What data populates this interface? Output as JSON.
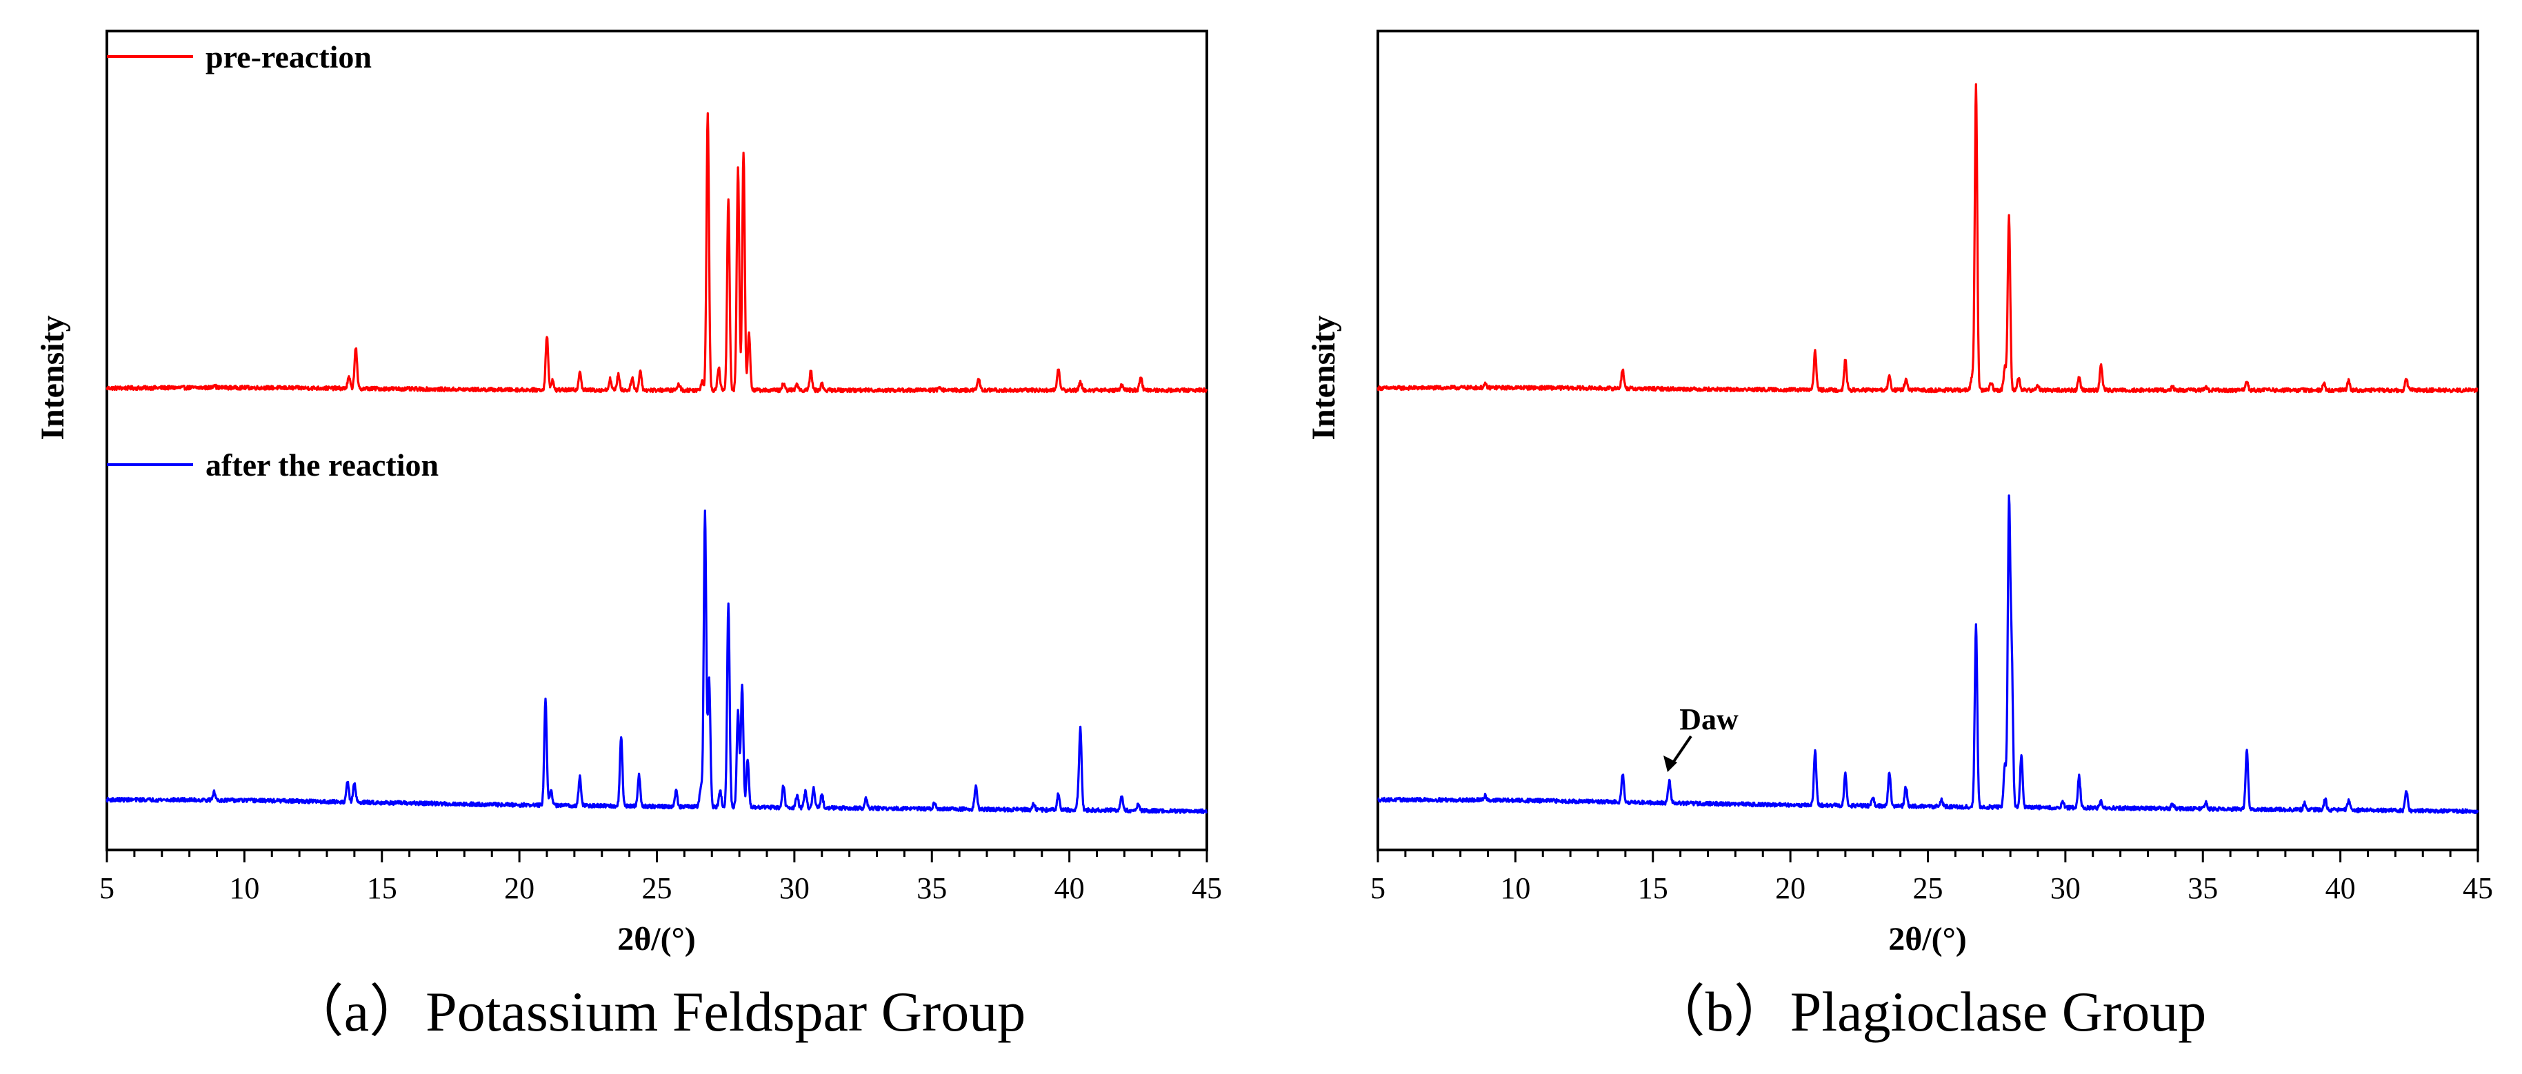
{
  "chart_data": [
    {
      "type": "line",
      "caption": "（a）Potassium Feldspar Group",
      "xlabel": "2θ/(°)",
      "ylabel": "Intensity",
      "xlim": [
        5,
        45
      ],
      "xticks": [
        5,
        10,
        15,
        20,
        25,
        30,
        35,
        40,
        45
      ],
      "yticks_shown": false,
      "legend_placement": "top-left",
      "series": [
        {
          "name": "pre-reaction",
          "color": "#ff0000",
          "baseline": 0.0,
          "peaks": [
            [
              8.9,
              0.01
            ],
            [
              13.8,
              0.035
            ],
            [
              14.05,
              0.13
            ],
            [
              21.0,
              0.17
            ],
            [
              21.2,
              0.03
            ],
            [
              22.2,
              0.06
            ],
            [
              23.3,
              0.035
            ],
            [
              23.6,
              0.05
            ],
            [
              24.1,
              0.04
            ],
            [
              24.4,
              0.06
            ],
            [
              25.8,
              0.02
            ],
            [
              26.65,
              0.03
            ],
            [
              26.85,
              0.87
            ],
            [
              27.25,
              0.07
            ],
            [
              27.6,
              0.6
            ],
            [
              27.95,
              0.7
            ],
            [
              28.15,
              0.75
            ],
            [
              28.35,
              0.18
            ],
            [
              29.6,
              0.02
            ],
            [
              30.1,
              0.02
            ],
            [
              30.6,
              0.06
            ],
            [
              31.0,
              0.02
            ],
            [
              35.3,
              0.01
            ],
            [
              36.7,
              0.035
            ],
            [
              39.6,
              0.07
            ],
            [
              40.4,
              0.025
            ],
            [
              41.9,
              0.015
            ],
            [
              42.6,
              0.045
            ]
          ]
        },
        {
          "name": "after the reaction",
          "color": "#0000ff",
          "baseline": -0.03,
          "peaks": [
            [
              8.9,
              0.025
            ],
            [
              13.75,
              0.065
            ],
            [
              14.0,
              0.06
            ],
            [
              20.95,
              0.33
            ],
            [
              21.15,
              0.05
            ],
            [
              22.2,
              0.09
            ],
            [
              23.7,
              0.22
            ],
            [
              24.35,
              0.1
            ],
            [
              25.7,
              0.05
            ],
            [
              26.6,
              0.06
            ],
            [
              26.75,
              0.93
            ],
            [
              26.9,
              0.4
            ],
            [
              27.3,
              0.05
            ],
            [
              27.6,
              0.64
            ],
            [
              27.95,
              0.3
            ],
            [
              28.1,
              0.38
            ],
            [
              28.3,
              0.15
            ],
            [
              29.6,
              0.07
            ],
            [
              30.1,
              0.04
            ],
            [
              30.4,
              0.05
            ],
            [
              30.7,
              0.06
            ],
            [
              31.0,
              0.045
            ],
            [
              32.6,
              0.03
            ],
            [
              35.1,
              0.02
            ],
            [
              36.6,
              0.075
            ],
            [
              38.7,
              0.02
            ],
            [
              39.6,
              0.05
            ],
            [
              40.3,
              0.025
            ],
            [
              40.4,
              0.26
            ],
            [
              41.9,
              0.045
            ],
            [
              42.5,
              0.02
            ]
          ]
        }
      ]
    },
    {
      "type": "line",
      "caption": "（b）Plagioclase Group",
      "xlabel": "2θ/(°)",
      "ylabel": "Intensity",
      "xlim": [
        5,
        45
      ],
      "xticks": [
        5,
        10,
        15,
        20,
        25,
        30,
        35,
        40,
        45
      ],
      "yticks_shown": false,
      "annotations": [
        {
          "text": "Daw",
          "x": 15.6
        }
      ],
      "series": [
        {
          "color": "#ff0000",
          "baseline": 0.0,
          "peaks": [
            [
              8.9,
              0.01
            ],
            [
              13.9,
              0.06
            ],
            [
              20.9,
              0.12
            ],
            [
              22.0,
              0.095
            ],
            [
              23.6,
              0.045
            ],
            [
              24.2,
              0.035
            ],
            [
              26.6,
              0.04
            ],
            [
              26.75,
              0.96
            ],
            [
              27.3,
              0.025
            ],
            [
              27.8,
              0.075
            ],
            [
              27.95,
              0.55
            ],
            [
              28.3,
              0.04
            ],
            [
              29.0,
              0.015
            ],
            [
              30.5,
              0.04
            ],
            [
              31.3,
              0.08
            ],
            [
              33.9,
              0.01
            ],
            [
              35.1,
              0.01
            ],
            [
              36.6,
              0.03
            ],
            [
              39.4,
              0.02
            ],
            [
              40.3,
              0.03
            ],
            [
              42.4,
              0.035
            ]
          ]
        },
        {
          "color": "#0000ff",
          "baseline": -0.03,
          "peaks": [
            [
              8.9,
              0.015
            ],
            [
              13.9,
              0.09
            ],
            [
              15.6,
              0.07
            ],
            [
              20.9,
              0.17
            ],
            [
              22.0,
              0.1
            ],
            [
              23.0,
              0.025
            ],
            [
              23.6,
              0.11
            ],
            [
              24.2,
              0.06
            ],
            [
              25.5,
              0.02
            ],
            [
              26.75,
              0.57
            ],
            [
              27.8,
              0.13
            ],
            [
              27.95,
              0.94
            ],
            [
              28.05,
              0.45
            ],
            [
              28.4,
              0.16
            ],
            [
              29.9,
              0.02
            ],
            [
              30.5,
              0.1
            ],
            [
              31.3,
              0.02
            ],
            [
              33.9,
              0.015
            ],
            [
              35.1,
              0.02
            ],
            [
              36.6,
              0.19
            ],
            [
              38.7,
              0.02
            ],
            [
              39.45,
              0.035
            ],
            [
              40.3,
              0.03
            ],
            [
              42.4,
              0.065
            ]
          ]
        }
      ]
    }
  ]
}
